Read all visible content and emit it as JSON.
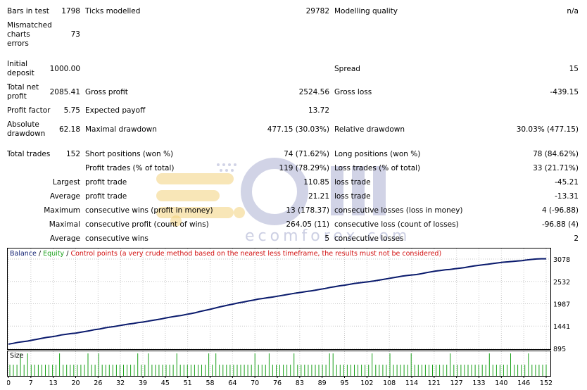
{
  "report": {
    "bars_in_test": {
      "label": "Bars in test",
      "value": "1798"
    },
    "ticks_modelled": {
      "label": "Ticks modelled",
      "value": "29782"
    },
    "modelling_quality": {
      "label": "Modelling quality",
      "value": "n/a"
    },
    "mismatched": {
      "label_lines": [
        "Mismatched",
        "charts",
        "errors"
      ],
      "value": "73"
    },
    "initial_deposit": {
      "label_lines": [
        "Initial",
        "deposit"
      ],
      "value": "1000.00"
    },
    "spread": {
      "label": "Spread",
      "value": "15"
    },
    "total_net_profit": {
      "label_lines": [
        "Total net",
        "profit"
      ],
      "value": "2085.41"
    },
    "gross_profit": {
      "label": "Gross profit",
      "value": "2524.56"
    },
    "gross_loss": {
      "label": "Gross loss",
      "value": "-439.15"
    },
    "profit_factor": {
      "label": "Profit factor",
      "value": "5.75"
    },
    "expected_payoff": {
      "label": "Expected payoff",
      "value": "13.72"
    },
    "absolute_drawdown": {
      "label_lines": [
        "Absolute",
        "drawdown"
      ],
      "value": "62.18"
    },
    "maximal_drawdown": {
      "label": "Maximal drawdown",
      "value": "477.15 (30.03%)"
    },
    "relative_drawdown": {
      "label": "Relative drawdown",
      "value": "30.03% (477.15)"
    },
    "total_trades": {
      "label": "Total trades",
      "value": "152"
    },
    "short_positions": {
      "label": "Short positions (won %)",
      "value": "74 (71.62%)"
    },
    "long_positions": {
      "label": "Long positions (won %)",
      "value": "78 (84.62%)"
    },
    "profit_trades": {
      "label": "Profit trades (% of total)",
      "value": "119 (78.29%)"
    },
    "loss_trades": {
      "label": "Loss trades (% of total)",
      "value": "33 (21.71%)"
    },
    "largest": {
      "prefix": "Largest",
      "profit_label": "profit trade",
      "profit_value": "110.85",
      "loss_label": "loss trade",
      "loss_value": "-45.21"
    },
    "average": {
      "prefix": "Average",
      "profit_label": "profit trade",
      "profit_value": "21.21",
      "loss_label": "loss trade",
      "loss_value": "-13.31"
    },
    "maximum": {
      "prefix": "Maximum",
      "profit_label": "consecutive wins (profit in money)",
      "profit_value": "13 (178.37)",
      "loss_label": "consecutive losses (loss in money)",
      "loss_value": "4 (-96.88)"
    },
    "maximal": {
      "prefix": "Maximal",
      "profit_label": "consecutive profit (count of wins)",
      "profit_value": "264.05 (11)",
      "loss_label": "consecutive loss (count of losses)",
      "loss_value": "-96.88 (4)"
    },
    "average_consec": {
      "prefix": "Average",
      "profit_label": "consecutive wins",
      "profit_value": "5",
      "loss_label": "consecutive losses",
      "loss_value": "2"
    }
  },
  "watermark": {
    "brand": "ecomforex.com"
  },
  "chart_legend": {
    "balance": "Balance",
    "sep1": " / ",
    "equity": "Equity",
    "sep2": " / ",
    "control": "Control points (a very crude method based on the nearest less timeframe, the results must not be considered)"
  },
  "colors": {
    "balance": "#0b1a6e",
    "equity": "#1aa01a",
    "control": "#d21010",
    "size_bar": "#1aa01a"
  },
  "chart_data": {
    "type": "line",
    "title": "",
    "series": [
      {
        "name": "Balance",
        "values": [
          1000,
          1020,
          1045,
          1060,
          1075,
          1100,
          1120,
          1145,
          1165,
          1180,
          1200,
          1225,
          1240,
          1258,
          1270,
          1290,
          1310,
          1330,
          1355,
          1370,
          1395,
          1415,
          1430,
          1450,
          1470,
          1490,
          1505,
          1525,
          1540,
          1560,
          1580,
          1600,
          1620,
          1645,
          1665,
          1685,
          1700,
          1725,
          1745,
          1770,
          1800,
          1825,
          1850,
          1880,
          1910,
          1935,
          1960,
          1985,
          2010,
          2030,
          2055,
          2075,
          2100,
          2115,
          2135,
          2150,
          2170,
          2190,
          2210,
          2230,
          2250,
          2265,
          2285,
          2300,
          2320,
          2340,
          2360,
          2385,
          2405,
          2425,
          2440,
          2460,
          2480,
          2495,
          2510,
          2525,
          2540,
          2560,
          2580,
          2600,
          2620,
          2640,
          2660,
          2675,
          2690,
          2700,
          2720,
          2745,
          2765,
          2785,
          2800,
          2815,
          2825,
          2840,
          2855,
          2870,
          2890,
          2910,
          2925,
          2940,
          2955,
          2970,
          2985,
          3000,
          3010,
          3020,
          3030,
          3040,
          3055,
          3070,
          3080,
          3085,
          3085
        ]
      },
      {
        "name": "Equity",
        "values": [
          1000,
          1022,
          1048,
          1062,
          1080,
          1105,
          1125,
          1150,
          1168,
          1185,
          1205,
          1230,
          1245,
          1263,
          1275,
          1295,
          1315,
          1335,
          1360,
          1375,
          1400,
          1420,
          1436,
          1456,
          1476,
          1496,
          1510,
          1530,
          1546,
          1566,
          1586,
          1606,
          1626,
          1651,
          1671,
          1691,
          1706,
          1731,
          1751,
          1776,
          1806,
          1831,
          1856,
          1886,
          1916,
          1941,
          1966,
          1991,
          2016,
          2036,
          2061,
          2081,
          2106,
          2121,
          2141,
          2156,
          2176,
          2196,
          2216,
          2236,
          2256,
          2271,
          2291,
          2306,
          2326,
          2346,
          2366,
          2391,
          2411,
          2431,
          2446,
          2466,
          2486,
          2501,
          2516,
          2531,
          2546,
          2566,
          2586,
          2606,
          2626,
          2646,
          2666,
          2681,
          2696,
          2706,
          2726,
          2751,
          2771,
          2791,
          2806,
          2821,
          2831,
          2846,
          2861,
          2876,
          2896,
          2916,
          2931,
          2946,
          2961,
          2976,
          2991,
          3006,
          3016,
          3026,
          3036,
          3046,
          3061,
          3076,
          3086,
          3088,
          3088
        ]
      }
    ],
    "y_ticks": [
      "3078",
      "2532",
      "1987",
      "1441",
      "895"
    ],
    "ylim": [
      895,
      3078
    ],
    "x_ticks": [
      "0",
      "7",
      "13",
      "20",
      "26",
      "32",
      "39",
      "45",
      "51",
      "58",
      "64",
      "70",
      "76",
      "83",
      "89",
      "95",
      "102",
      "108",
      "114",
      "121",
      "127",
      "133",
      "140",
      "146",
      "152"
    ],
    "size_panel_label": "Size"
  }
}
